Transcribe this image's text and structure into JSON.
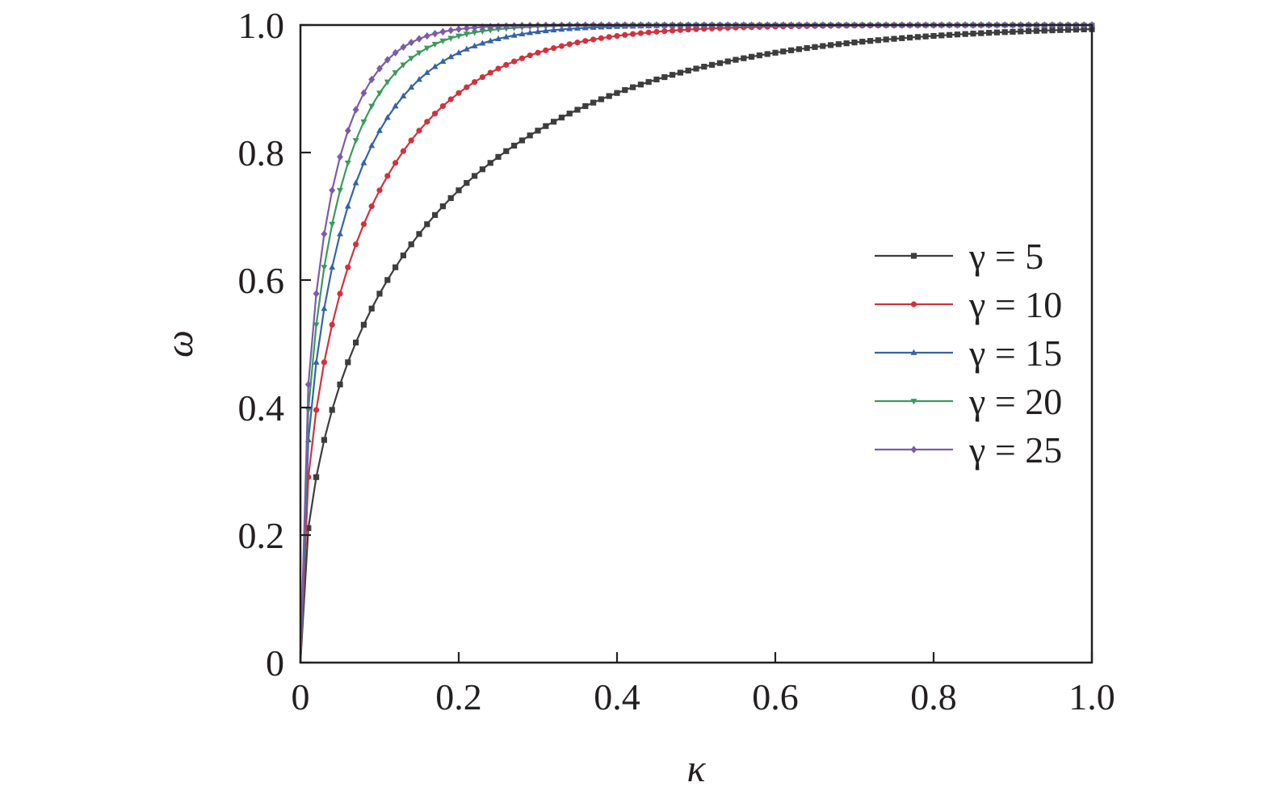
{
  "chart_data": {
    "type": "line",
    "title": "",
    "xlabel": "κ",
    "ylabel": "ω",
    "xlim": [
      0,
      1.0
    ],
    "ylim": [
      0,
      1.0
    ],
    "xticks": [
      "0",
      "0.2",
      "0.4",
      "0.6",
      "0.8",
      "1.0"
    ],
    "yticks": [
      "0",
      "0.2",
      "0.4",
      "0.6",
      "0.8",
      "1.0"
    ],
    "grid": false,
    "legend_position": "center-right",
    "series": [
      {
        "name": "γ = 5",
        "gamma": 5,
        "color": "#3d3d3d",
        "marker": "square"
      },
      {
        "name": "γ = 10",
        "gamma": 10,
        "color": "#d1323c",
        "marker": "circle"
      },
      {
        "name": "γ = 15",
        "gamma": 15,
        "color": "#3563a9",
        "marker": "triangle-up"
      },
      {
        "name": "γ = 20",
        "gamma": 20,
        "color": "#3a9a5b",
        "marker": "triangle-down"
      },
      {
        "name": "γ = 25",
        "gamma": 25,
        "color": "#7c5ca6",
        "marker": "diamond"
      }
    ],
    "x": [
      0,
      0.01,
      0.02,
      0.03,
      0.04,
      0.05,
      0.06,
      0.07,
      0.08,
      0.09,
      0.1,
      0.11,
      0.12,
      0.13,
      0.14,
      0.15,
      0.16,
      0.17,
      0.18,
      0.19,
      0.2,
      0.21,
      0.22,
      0.23,
      0.24,
      0.25,
      0.26,
      0.27,
      0.28,
      0.29,
      0.3,
      0.31,
      0.32,
      0.33,
      0.34,
      0.35,
      0.36,
      0.37,
      0.38,
      0.39,
      0.4,
      0.41,
      0.42,
      0.43,
      0.44,
      0.45,
      0.46,
      0.47,
      0.48,
      0.49,
      0.5,
      0.51,
      0.52,
      0.53,
      0.54,
      0.55,
      0.56,
      0.57,
      0.58,
      0.59,
      0.6,
      0.61,
      0.62,
      0.63,
      0.64,
      0.65,
      0.66,
      0.67,
      0.68,
      0.69,
      0.7,
      0.71,
      0.72,
      0.73,
      0.74,
      0.75,
      0.76,
      0.77,
      0.78,
      0.79,
      0.8,
      0.81,
      0.82,
      0.83,
      0.84,
      0.85,
      0.86,
      0.87,
      0.88,
      0.89,
      0.9,
      0.91,
      0.92,
      0.93,
      0.94,
      0.95,
      0.96,
      0.97,
      0.98,
      0.99,
      1.0
    ]
  }
}
